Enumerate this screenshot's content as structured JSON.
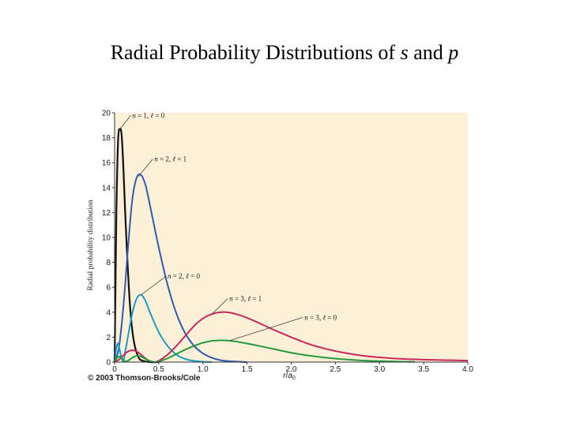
{
  "title": {
    "prefix": "Radial Probability Distributions of ",
    "s": "s",
    "middle": " and ",
    "p": "p"
  },
  "copyright": "© 2003 Thomson-Brooks/Cole",
  "colors": {
    "background": "#fdf0d9",
    "n1l0": "#111111",
    "n2l1": "#2e5db0",
    "n2l0": "#1a9cc8",
    "n3l1": "#c8285a",
    "n3l0": "#239b3c"
  },
  "chart_data": {
    "type": "line",
    "title": "",
    "xlabel": "r/a0",
    "ylabel": "Radial probability distribution",
    "xlim": [
      0,
      4.0
    ],
    "ylim": [
      0,
      20
    ],
    "x_ticks": [
      "0",
      "0.5",
      "1.0",
      "1.5",
      "2.0",
      "2.5",
      "3.0",
      "3.5",
      "4.0"
    ],
    "y_ticks": [
      "0",
      "2",
      "4",
      "6",
      "8",
      "10",
      "12",
      "14",
      "16",
      "18",
      "20"
    ],
    "grid": false,
    "series": [
      {
        "name": "n = 1, ℓ = 0",
        "color": "#111111",
        "x": [
          0,
          0.01,
          0.02,
          0.04,
          0.06,
          0.08,
          0.1,
          0.12,
          0.15,
          0.18,
          0.22,
          0.27,
          0.32,
          0.4,
          0.5
        ],
        "y": [
          0,
          6,
          12,
          17.8,
          18.7,
          18.2,
          15.5,
          12,
          7.5,
          4,
          1.6,
          0.4,
          0.1,
          0,
          0
        ]
      },
      {
        "name": "n = 2, ℓ = 1",
        "color": "#2e5db0",
        "x": [
          0,
          0.05,
          0.1,
          0.15,
          0.2,
          0.25,
          0.3,
          0.35,
          0.4,
          0.5,
          0.6,
          0.7,
          0.8,
          0.9,
          1.0,
          1.1,
          1.2,
          1.3,
          1.5
        ],
        "y": [
          0,
          1.2,
          4.5,
          9,
          13,
          14.8,
          15,
          14.2,
          12.6,
          9.2,
          6.2,
          3.9,
          2.3,
          1.3,
          0.7,
          0.35,
          0.15,
          0.07,
          0
        ]
      },
      {
        "name": "n = 2, ℓ = 0",
        "color": "#1a9cc8",
        "x": [
          0,
          0.02,
          0.04,
          0.06,
          0.08,
          0.1,
          0.12,
          0.15,
          0.2,
          0.25,
          0.3,
          0.35,
          0.4,
          0.5,
          0.6,
          0.7,
          0.8,
          0.9,
          1.0,
          1.1
        ],
        "y": [
          0,
          1.1,
          1.5,
          0.9,
          0.3,
          0.1,
          0.8,
          2,
          3.9,
          5.1,
          5.4,
          4.9,
          4,
          2.4,
          1.3,
          0.6,
          0.25,
          0.1,
          0.03,
          0
        ]
      },
      {
        "name": "n = 3, ℓ = 1",
        "color": "#c8285a",
        "x": [
          0,
          0.05,
          0.1,
          0.15,
          0.2,
          0.25,
          0.3,
          0.35,
          0.4,
          0.45,
          0.5,
          0.6,
          0.7,
          0.8,
          0.9,
          1.0,
          1.1,
          1.2,
          1.3,
          1.4,
          1.5,
          1.6,
          1.8,
          2.0,
          2.2,
          2.4,
          2.6,
          2.8,
          3.0,
          3.2,
          3.4,
          3.6,
          3.8,
          4.0
        ],
        "y": [
          0,
          0.2,
          0.55,
          0.85,
          0.95,
          0.85,
          0.6,
          0.3,
          0.08,
          0,
          0.1,
          0.6,
          1.3,
          2.1,
          2.9,
          3.5,
          3.85,
          4,
          3.98,
          3.8,
          3.55,
          3.25,
          2.6,
          2,
          1.45,
          1.05,
          0.75,
          0.52,
          0.38,
          0.28,
          0.22,
          0.18,
          0.15,
          0.12
        ]
      },
      {
        "name": "n = 3, ℓ = 0",
        "color": "#239b3c",
        "x": [
          0,
          0.03,
          0.06,
          0.09,
          0.12,
          0.15,
          0.2,
          0.25,
          0.3,
          0.35,
          0.4,
          0.45,
          0.5,
          0.6,
          0.7,
          0.8,
          0.9,
          1.0,
          1.1,
          1.2,
          1.3,
          1.4,
          1.6,
          1.8,
          2.0,
          2.2,
          2.4,
          2.6,
          2.8,
          3.0,
          3.2,
          3.4
        ],
        "y": [
          0,
          0.35,
          0.45,
          0.25,
          0.05,
          0.1,
          0.35,
          0.5,
          0.45,
          0.25,
          0.08,
          0,
          0.05,
          0.3,
          0.65,
          1.0,
          1.3,
          1.55,
          1.7,
          1.75,
          1.72,
          1.62,
          1.35,
          1.05,
          0.75,
          0.52,
          0.35,
          0.22,
          0.13,
          0.08,
          0.04,
          0.02
        ]
      }
    ],
    "annotations": [
      {
        "label": {
          "n": "n",
          "eq1": " = 1, ",
          "l": "ℓ",
          "eq2": " = 0"
        },
        "series": 0,
        "anchor_x": 0.06,
        "anchor_y": 18.7,
        "label_x": 0.2,
        "label_y": 19.6
      },
      {
        "label": {
          "n": "n",
          "eq1": " = 2, ",
          "l": "ℓ",
          "eq2": " = 1"
        },
        "series": 1,
        "anchor_x": 0.27,
        "anchor_y": 14.9,
        "label_x": 0.45,
        "label_y": 16.1
      },
      {
        "label": {
          "n": "n",
          "eq1": " = 2, ",
          "l": "ℓ",
          "eq2": " = 0"
        },
        "series": 2,
        "anchor_x": 0.3,
        "anchor_y": 5.4,
        "label_x": 0.6,
        "label_y": 6.7
      },
      {
        "label": {
          "n": "n",
          "eq1": " = 3, ",
          "l": "ℓ",
          "eq2": " = 1"
        },
        "series": 3,
        "anchor_x": 1.1,
        "anchor_y": 3.85,
        "label_x": 1.3,
        "label_y": 4.9
      },
      {
        "label": {
          "n": "n",
          "eq1": " = 3, ",
          "l": "ℓ",
          "eq2": " = 0"
        },
        "series": 4,
        "anchor_x": 1.3,
        "anchor_y": 1.72,
        "label_x": 2.15,
        "label_y": 3.4
      }
    ]
  }
}
